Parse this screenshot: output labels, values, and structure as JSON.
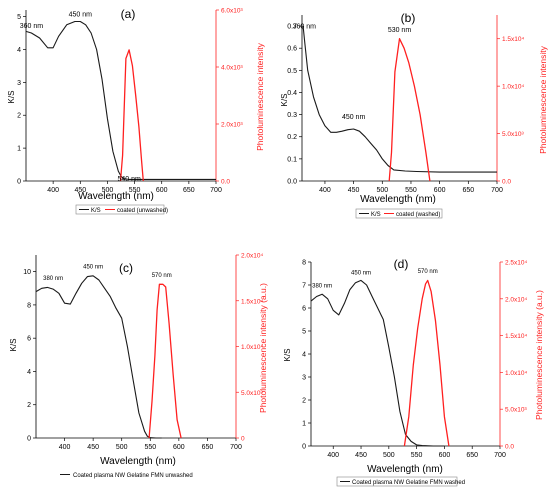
{
  "colors": {
    "kplot": "#1a1a1a",
    "pl": "#ff2020",
    "axis": "#000000"
  },
  "chart_data": [
    {
      "panel_label": "(a)",
      "type": "line",
      "xlabel": "Wavelength (nm)",
      "ylabel": "K/S",
      "y2label": "Photoluminescence intensity",
      "xlim": [
        350,
        700
      ],
      "ylim": [
        0,
        5.2
      ],
      "y2lim": [
        0,
        6000
      ],
      "xticks": [
        "400",
        "450",
        "500",
        "550",
        "600",
        "650",
        "700"
      ],
      "yticks": [
        "0",
        "1",
        "2",
        "3",
        "4",
        "5"
      ],
      "y2ticks": [
        "0.0",
        "2.0x10³",
        "4.0x10³",
        "6.0x10³"
      ],
      "annotations": [
        "360 nm",
        "450 nm",
        "540 nm"
      ],
      "legend": [
        "K/S",
        "coated (unwashed)"
      ],
      "series": [
        {
          "name": "K/S",
          "axis": "left",
          "x": [
            350,
            360,
            375,
            390,
            400,
            410,
            425,
            440,
            450,
            460,
            470,
            480,
            490,
            500,
            510,
            520,
            525,
            530,
            540,
            550,
            570,
            600,
            650,
            700
          ],
          "y": [
            4.55,
            4.5,
            4.35,
            4.05,
            4.05,
            4.4,
            4.75,
            4.85,
            4.85,
            4.75,
            4.5,
            4.0,
            3.1,
            1.9,
            0.9,
            0.3,
            0.15,
            0.07,
            0.05,
            0.05,
            0.05,
            0.05,
            0.05,
            0.05
          ]
        },
        {
          "name": "coated (unwashed)",
          "axis": "right",
          "x": [
            524,
            528,
            534,
            540,
            546,
            552,
            558,
            563,
            566
          ],
          "y": [
            0,
            900,
            4300,
            4600,
            4050,
            3000,
            1900,
            700,
            0
          ]
        }
      ]
    },
    {
      "panel_label": "(b)",
      "type": "line",
      "xlabel": "Wavelength (nm)",
      "ylabel": "K/S",
      "y2label": "Photoluminescence intensity",
      "xlim": [
        360,
        700
      ],
      "ylim": [
        0,
        0.75
      ],
      "y2lim": [
        0,
        17500
      ],
      "xticks": [
        "400",
        "450",
        "500",
        "550",
        "600",
        "650",
        "700"
      ],
      "yticks": [
        "0.0",
        "0.1",
        "0.2",
        "0.3",
        "0.4",
        "0.5",
        "0.6",
        "0.7"
      ],
      "y2ticks": [
        "0.0",
        "5.0x10³",
        "1.0x10⁴",
        "1.5x10⁴"
      ],
      "annotations": [
        "360 nm",
        "450 nm",
        "530 nm"
      ],
      "legend": [
        "K/S",
        "coated (washed)"
      ],
      "series": [
        {
          "name": "K/S",
          "axis": "left",
          "x": [
            362,
            365,
            370,
            380,
            390,
            400,
            410,
            420,
            430,
            440,
            450,
            460,
            470,
            480,
            490,
            500,
            510,
            520,
            540,
            560,
            600,
            650,
            700
          ],
          "y": [
            0.7,
            0.62,
            0.5,
            0.38,
            0.3,
            0.25,
            0.22,
            0.22,
            0.225,
            0.232,
            0.235,
            0.225,
            0.2,
            0.17,
            0.14,
            0.1,
            0.07,
            0.05,
            0.045,
            0.043,
            0.04,
            0.04,
            0.04
          ]
        },
        {
          "name": "coated (washed)",
          "axis": "right",
          "x": [
            512,
            516,
            522,
            530,
            538,
            546,
            556,
            566,
            576,
            583
          ],
          "y": [
            0,
            3000,
            11500,
            15000,
            14000,
            12500,
            10000,
            7000,
            3000,
            0
          ]
        }
      ]
    },
    {
      "panel_label": "(c)",
      "type": "line",
      "xlabel": "Wavelength (nm)",
      "ylabel": "K/S",
      "y2label": "Photoluminescence intensity (a.u.)",
      "xlim": [
        350,
        700
      ],
      "ylim": [
        0,
        11
      ],
      "y2lim": [
        0,
        20000
      ],
      "xticks": [
        "400",
        "450",
        "500",
        "550",
        "600",
        "650",
        "700"
      ],
      "yticks": [
        "0",
        "2",
        "4",
        "6",
        "8",
        "10"
      ],
      "y2ticks": [
        "0",
        "5.0x10³",
        "1.0x10⁴",
        "1.5x10⁴",
        "2.0x10⁴"
      ],
      "annotations": [
        "380 nm",
        "450 nm",
        "570 nm"
      ],
      "legend": [
        "Coated plasma NW Gelatine FMN unwashed"
      ],
      "series": [
        {
          "name": "Coated plasma NW Gelatine FMN unwashed",
          "axis": "left",
          "x": [
            350,
            360,
            370,
            380,
            390,
            400,
            410,
            420,
            430,
            440,
            450,
            460,
            470,
            480,
            490,
            500,
            510,
            520,
            530,
            540,
            545,
            550,
            560,
            570
          ],
          "y": [
            8.8,
            9.0,
            9.05,
            8.95,
            8.7,
            8.1,
            8.05,
            8.7,
            9.3,
            9.7,
            9.75,
            9.5,
            9.0,
            8.5,
            7.8,
            7.2,
            5.5,
            3.5,
            1.5,
            0.4,
            0.1,
            0.02,
            0,
            0
          ]
        },
        {
          "name": "PL",
          "axis": "right",
          "x": [
            548,
            553,
            558,
            562,
            566,
            572,
            577,
            583,
            590,
            597,
            604
          ],
          "y": [
            0,
            4000,
            9000,
            14000,
            16800,
            16800,
            16500,
            12500,
            7000,
            2000,
            0
          ]
        }
      ]
    },
    {
      "panel_label": "(d)",
      "type": "line",
      "xlabel": "Wavelength (nm)",
      "ylabel": "K/S",
      "y2label": "Photoluminescence intensity (a.u.)",
      "xlim": [
        360,
        700
      ],
      "ylim": [
        0,
        8
      ],
      "y2lim": [
        0,
        25000
      ],
      "xticks": [
        "400",
        "450",
        "500",
        "550",
        "600",
        "650",
        "700"
      ],
      "yticks": [
        "0",
        "1",
        "2",
        "3",
        "4",
        "5",
        "6",
        "7",
        "8"
      ],
      "y2ticks": [
        "0.0",
        "5.0x10³",
        "1.0x10⁴",
        "1.5x10⁴",
        "2.0x10⁴",
        "2.5x10⁴"
      ],
      "annotations": [
        "380 nm",
        "450 nm",
        "570 nm"
      ],
      "legend": [
        "Coated plasma NW Gelatine FMN washed"
      ],
      "series": [
        {
          "name": "Coated plasma NW Gelatine FMN washed",
          "axis": "left",
          "x": [
            360,
            370,
            380,
            390,
            400,
            410,
            420,
            430,
            440,
            450,
            460,
            470,
            480,
            490,
            500,
            510,
            520,
            530,
            540,
            550,
            560,
            580,
            600
          ],
          "y": [
            6.3,
            6.5,
            6.6,
            6.4,
            5.9,
            5.7,
            6.2,
            6.8,
            7.1,
            7.2,
            7.0,
            6.5,
            6.0,
            5.5,
            4.3,
            3.0,
            1.5,
            0.5,
            0.2,
            0.05,
            0.02,
            0,
            0
          ]
        },
        {
          "name": "PL",
          "axis": "right",
          "x": [
            528,
            536,
            544,
            552,
            560,
            566,
            570,
            576,
            584,
            592,
            600,
            608
          ],
          "y": [
            0,
            4000,
            11000,
            16000,
            20000,
            22000,
            22500,
            21000,
            17000,
            11000,
            4000,
            0
          ]
        }
      ]
    }
  ]
}
